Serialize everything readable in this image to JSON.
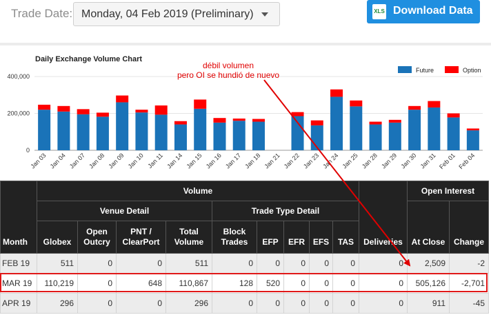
{
  "header": {
    "trade_date_label": "Trade Date:",
    "trade_date_value": "Monday, 04 Feb 2019 (Preliminary)",
    "download_label": "Download Data",
    "xls_icon_text": "XLS"
  },
  "annotation": {
    "line1": "débil volumen",
    "line2": "pero OI se hundió de nuevo",
    "color": "#e00000"
  },
  "chart_data": {
    "type": "bar",
    "title": "Daily Exchange Volume Chart",
    "stacked": true,
    "categories": [
      "Jan 03",
      "Jan 04",
      "Jan 07",
      "Jan 08",
      "Jan 09",
      "Jan 10",
      "Jan 11",
      "Jan 14",
      "Jan 15",
      "Jan 16",
      "Jan 17",
      "Jan 18",
      "Jan 21",
      "Jan 22",
      "Jan 23",
      "Jan 24",
      "Jan 25",
      "Jan 28",
      "Jan 29",
      "Jan 30",
      "Jan 31",
      "Feb 01",
      "Feb 04"
    ],
    "series": [
      {
        "name": "Future",
        "color": "#1a73b8",
        "values": [
          220000,
          210000,
          195000,
          182000,
          260000,
          205000,
          193000,
          140000,
          225000,
          150000,
          160000,
          155000,
          0,
          185000,
          135000,
          290000,
          238000,
          140000,
          150000,
          220000,
          232000,
          178000,
          108000
        ]
      },
      {
        "name": "Option",
        "color": "#ff0000",
        "values": [
          27000,
          30000,
          28000,
          22000,
          37000,
          15000,
          50000,
          18000,
          50000,
          25000,
          12000,
          15000,
          0,
          22000,
          27000,
          40000,
          32000,
          15000,
          15000,
          20000,
          35000,
          22000,
          10000
        ]
      }
    ],
    "yticks": [
      "0",
      "200,000",
      "400,000"
    ],
    "ylim": [
      0,
      400000
    ],
    "legend_position": "top-right",
    "grid": true
  },
  "table": {
    "group_headers": {
      "volume": "Volume",
      "open_interest": "Open Interest",
      "venue_detail": "Venue Detail",
      "trade_type_detail": "Trade Type Detail"
    },
    "columns": {
      "month": "Month",
      "globex": "Globex",
      "open_outcry_1": "Open",
      "open_outcry_2": "Outcry",
      "pnt_1": "PNT /",
      "pnt_2": "ClearPort",
      "total_1": "Total",
      "total_2": "Volume",
      "block_1": "Block",
      "block_2": "Trades",
      "efp": "EFP",
      "efr": "EFR",
      "efs": "EFS",
      "tas": "TAS",
      "deliveries": "Deliveries",
      "at_close": "At Close",
      "change": "Change"
    },
    "rows": [
      {
        "month": "FEB 19",
        "globex": "511",
        "open_outcry": "0",
        "pnt": "0",
        "total": "511",
        "block": "0",
        "efp": "0",
        "efr": "0",
        "efs": "0",
        "tas": "0",
        "deliveries": "0",
        "at_close": "2,509",
        "change": "-2"
      },
      {
        "month": "MAR 19",
        "globex": "110,219",
        "open_outcry": "0",
        "pnt": "648",
        "total": "110,867",
        "block": "128",
        "efp": "520",
        "efr": "0",
        "efs": "0",
        "tas": "0",
        "deliveries": "0",
        "at_close": "505,126",
        "change": "-2,701"
      },
      {
        "month": "APR 19",
        "globex": "296",
        "open_outcry": "0",
        "pnt": "0",
        "total": "296",
        "block": "0",
        "efp": "0",
        "efr": "0",
        "efs": "0",
        "tas": "0",
        "deliveries": "0",
        "at_close": "911",
        "change": "-45"
      }
    ]
  }
}
